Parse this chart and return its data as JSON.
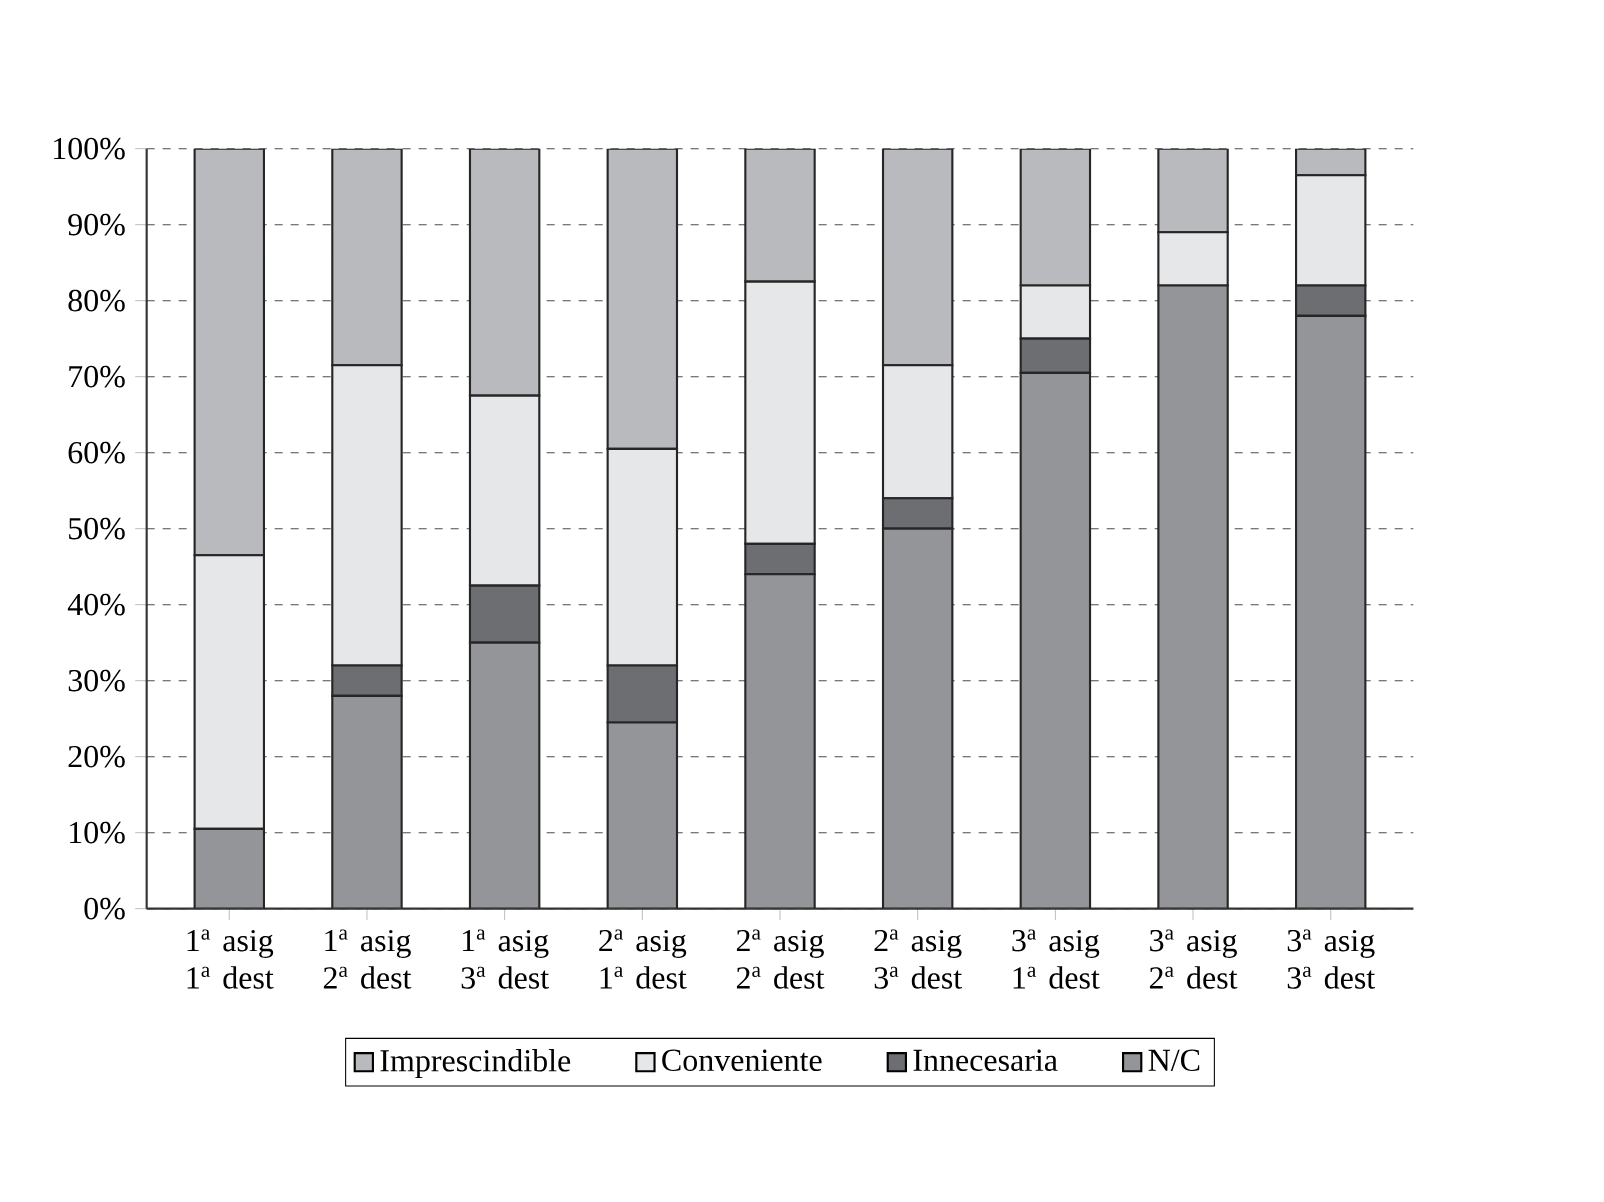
{
  "chart_data": {
    "type": "bar",
    "stacked": true,
    "categories": [
      "1$^{a}$ asig 1$^{a}$ dest",
      "1$^{a}$ asig 2$^{a}$ dest",
      "1$^{a}$ asig 3$^{a}$ dest",
      "2$^{a}$ asig 1$^{a}$ dest",
      "2$^{a}$ asig 2$^{a}$ dest",
      "2$^{a}$ asig 3$^{a}$ dest",
      "3$^{a}$ asig 1$^{a}$ dest",
      "3$^{a}$ asig 2$^{a}$ dest",
      "3$^{a}$ asig 3$^{a}$ dest"
    ],
    "series": [
      {
        "name": "N/C",
        "color": "#939598",
        "values": [
          10.5,
          28,
          35,
          24.5,
          44,
          50,
          70.5,
          82,
          78
        ]
      },
      {
        "name": "Innecesaria",
        "color": "#6d6e71",
        "values": [
          0,
          4,
          7.5,
          7.5,
          4,
          4,
          4.5,
          0,
          4
        ]
      },
      {
        "name": "Conveniente",
        "color": "#e6e7e9",
        "values": [
          36,
          39.5,
          25,
          28.5,
          34.5,
          17.5,
          7,
          7,
          14.5
        ]
      },
      {
        "name": "Imprescindible",
        "color": "#b9babd",
        "values": [
          53.5,
          28.5,
          32.5,
          39.5,
          17.5,
          28.5,
          18,
          11,
          3.5
        ]
      }
    ],
    "ylim": [
      0,
      100
    ],
    "yticks": [
      {
        "value": 0,
        "label": "0%"
      },
      {
        "value": 10,
        "label": "10%"
      },
      {
        "value": 20,
        "label": "20%"
      },
      {
        "value": 30,
        "label": "30%"
      },
      {
        "value": 40,
        "label": "40%"
      },
      {
        "value": 50,
        "label": "50%"
      },
      {
        "value": 60,
        "label": "60%"
      },
      {
        "value": 70,
        "label": "70%"
      },
      {
        "value": 80,
        "label": "80%"
      },
      {
        "value": 90,
        "label": "90%"
      },
      {
        "value": 100,
        "label": "100%"
      }
    ],
    "grid": "y",
    "line_style": "dashed",
    "legend": "bottom"
  }
}
